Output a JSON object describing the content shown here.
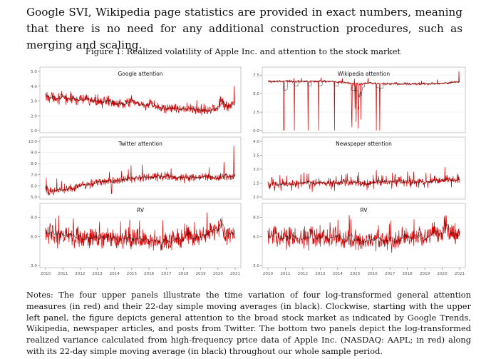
{
  "intro_text": "Google SVI, Wikipedia page statistics are provided in exact numbers, meaning that there is no need for any additional construction procedures, such as merging and scaling.",
  "figure_caption": "Figure 1: Realized volatility of Apple Inc. and attention to the stock market",
  "notes_text": "Notes: The four upper panels illustrate the time variation of four log-transformed general attention measures (in red) and their 22-day simple moving averages (in black). Clockwise, starting with the upper left panel, the figure depicts general attention to the broad stock market as indicated by Google Trends, Wikipedia, newspaper articles, and posts from Twitter. The bottom two panels depict the log-transformed realized variance calculated from high-frequency price data of Apple Inc. (NASDAQ: AAPL; in red) along with its 22-day simple moving average (in black) throughout our whole sample period.",
  "colors": {
    "raw_series": "#d40000",
    "moving_average": "#1a1a1a",
    "panel_border": "#bdbdbd",
    "grid": "#ececec"
  },
  "chart_data": [
    {
      "type": "line",
      "title": "Google attention",
      "x_range": [
        2010,
        2021
      ],
      "ylim": [
        1.0,
        5.0
      ],
      "yticks": [
        "1.0",
        "2.0",
        "3.0",
        "4.0",
        "5.0"
      ],
      "xticks": [],
      "profile": "google",
      "series": [
        {
          "name": "",
          "x": [
            2010,
            2011,
            2012,
            2013,
            2014,
            2015,
            2016,
            2017,
            2018,
            2019,
            2020,
            2021
          ],
          "values": [
            3.3,
            3.2,
            3.1,
            3.0,
            2.9,
            2.9,
            2.7,
            2.5,
            2.5,
            2.4,
            2.5,
            2.8
          ]
        }
      ]
    },
    {
      "type": "line",
      "title": "Wikipedia attention",
      "x_range": [
        2010,
        2021
      ],
      "ylim": [
        0.0,
        8.0
      ],
      "yticks": [
        "0.0",
        "2.5",
        "5.0",
        "7.5"
      ],
      "xticks": [],
      "profile": "wikipedia",
      "series": [
        {
          "name": "",
          "x": [
            2010,
            2011,
            2012,
            2013,
            2014,
            2015,
            2016,
            2017,
            2018,
            2019,
            2020,
            2021
          ],
          "values": [
            6.6,
            6.7,
            6.6,
            6.7,
            6.6,
            6.3,
            6.4,
            6.3,
            6.3,
            6.3,
            6.4,
            6.6
          ]
        }
      ]
    },
    {
      "type": "line",
      "title": "Twitter attention",
      "x_range": [
        2010,
        2021
      ],
      "ylim": [
        5.0,
        10.0
      ],
      "yticks": [
        "5.0",
        "6.0",
        "7.0",
        "8.0",
        "9.0",
        "10.0"
      ],
      "xticks": [],
      "profile": "twitter",
      "series": [
        {
          "name": "",
          "x": [
            2010,
            2011,
            2012,
            2013,
            2014,
            2015,
            2016,
            2017,
            2018,
            2019,
            2020,
            2021
          ],
          "values": [
            5.5,
            5.7,
            6.0,
            6.3,
            6.5,
            6.6,
            6.8,
            6.8,
            6.7,
            6.8,
            6.8,
            6.9
          ]
        }
      ]
    },
    {
      "type": "line",
      "title": "Newspaper attention",
      "x_range": [
        2010,
        2021
      ],
      "ylim": [
        2.0,
        4.0
      ],
      "yticks": [
        "2.0",
        "2.5",
        "3.0",
        "3.5",
        "4.0"
      ],
      "xticks": [],
      "profile": "newspaper",
      "series": [
        {
          "name": "",
          "x": [
            2010,
            2011,
            2012,
            2013,
            2014,
            2015,
            2016,
            2017,
            2018,
            2019,
            2020,
            2021
          ],
          "values": [
            2.45,
            2.45,
            2.5,
            2.5,
            2.5,
            2.5,
            2.5,
            2.55,
            2.55,
            2.55,
            2.6,
            2.6
          ]
        }
      ]
    },
    {
      "type": "line",
      "title": "RV",
      "x_range": [
        2010,
        2021
      ],
      "ylim": [
        3.0,
        9.0
      ],
      "yticks": [
        "3.0",
        "6.0",
        "8.0"
      ],
      "xticks": [
        "2010",
        "2011",
        "2012",
        "2013",
        "2014",
        "2015",
        "2016",
        "2017",
        "2018",
        "2019",
        "2020",
        "2021"
      ],
      "profile": "rv",
      "series": [
        {
          "name": "",
          "x": [
            2010,
            2011,
            2012,
            2013,
            2014,
            2015,
            2016,
            2017,
            2018,
            2019,
            2020,
            2021
          ],
          "values": [
            6.3,
            6.0,
            5.8,
            6.0,
            5.8,
            5.6,
            5.6,
            5.5,
            5.9,
            6.0,
            6.6,
            6.0
          ]
        }
      ]
    },
    {
      "type": "line",
      "title": "RV",
      "x_range": [
        2010,
        2021
      ],
      "ylim": [
        3.0,
        9.0
      ],
      "yticks": [
        "3.0",
        "6.0",
        "8.0"
      ],
      "xticks": [
        "2010",
        "2011",
        "2012",
        "2013",
        "2014",
        "2015",
        "2016",
        "2017",
        "2018",
        "2019",
        "2020",
        "2021"
      ],
      "profile": "rv",
      "series": [
        {
          "name": "",
          "x": [
            2010,
            2011,
            2012,
            2013,
            2014,
            2015,
            2016,
            2017,
            2018,
            2019,
            2020,
            2021
          ],
          "values": [
            6.3,
            6.0,
            5.8,
            6.0,
            5.8,
            5.6,
            5.6,
            5.5,
            5.9,
            6.0,
            6.6,
            6.0
          ]
        }
      ]
    }
  ]
}
